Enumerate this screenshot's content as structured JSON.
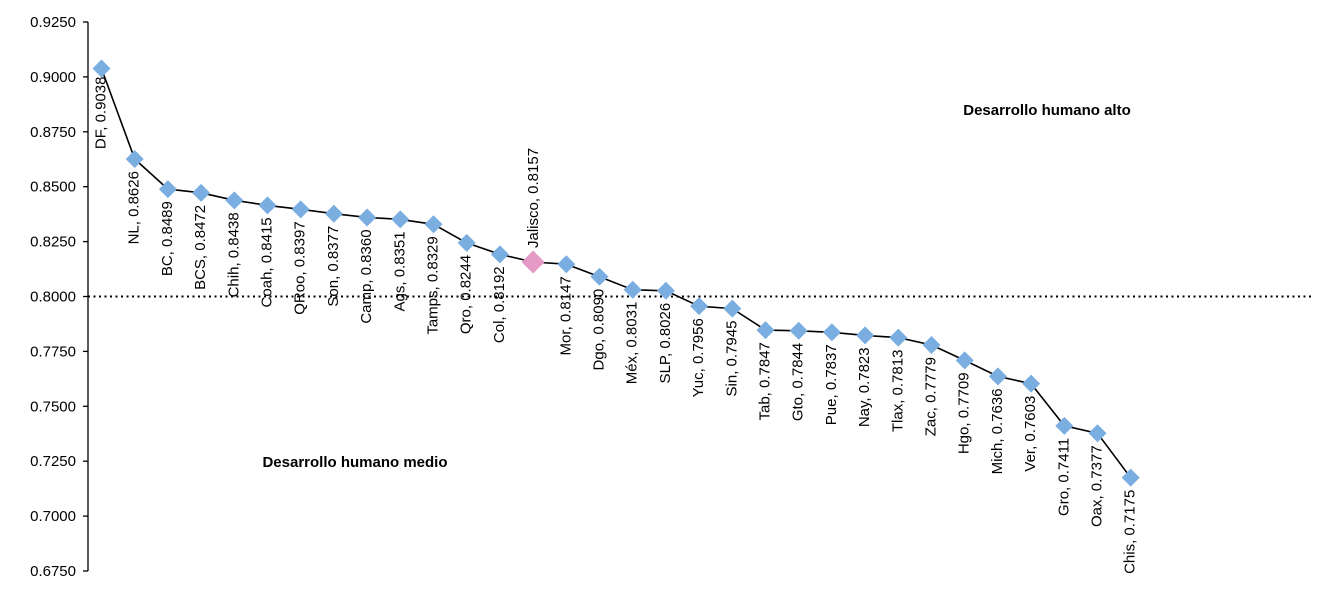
{
  "chart_data": {
    "type": "line",
    "title": "",
    "xlabel": "",
    "ylabel": "",
    "ylim": [
      0.675,
      0.925
    ],
    "y_ticks": [
      "0.9250",
      "0.9000",
      "0.8750",
      "0.8500",
      "0.8250",
      "0.8000",
      "0.7750",
      "0.7500",
      "0.7250",
      "0.7000",
      "0.6750"
    ],
    "grid": false,
    "reference_line": {
      "value": 0.8,
      "style": "dotted"
    },
    "annotations": {
      "high": "Desarrollo humano alto",
      "medium": "Desarrollo humano medio"
    },
    "colors": {
      "line": "#000000",
      "marker": "#7AADE0",
      "highlight": "#E59AC6"
    },
    "highlight": "Jalisco",
    "categories": [
      "DF",
      "NL",
      "BC",
      "BCS",
      "Chih",
      "Coah",
      "QRoo",
      "Son",
      "Camp",
      "Ags",
      "Tamps",
      "Qro",
      "Col",
      "Jalisco",
      "Mor",
      "Dgo",
      "Méx",
      "SLP",
      "Yuc",
      "Sin",
      "Tab",
      "Gto",
      "Pue",
      "Nay",
      "Tlax",
      "Zac",
      "Hgo",
      "Mich",
      "Ver",
      "Gro",
      "Oax",
      "Chis"
    ],
    "values": [
      0.9038,
      0.8626,
      0.8489,
      0.8472,
      0.8438,
      0.8415,
      0.8397,
      0.8377,
      0.836,
      0.8351,
      0.8329,
      0.8244,
      0.8192,
      0.8157,
      0.8147,
      0.809,
      0.8031,
      0.8026,
      0.7956,
      0.7945,
      0.7847,
      0.7844,
      0.7837,
      0.7823,
      0.7813,
      0.7779,
      0.7709,
      0.7636,
      0.7603,
      0.7411,
      0.7377,
      0.7175
    ],
    "labels": [
      "DF, 0.9038",
      "NL, 0.8626",
      "BC, 0.8489",
      "BCS, 0.8472",
      "Chih, 0.8438",
      "Coah, 0.8415",
      "QRoo, 0.8397",
      "Son, 0.8377",
      "Camp, 0.8360",
      "Ags, 0.8351",
      "Tamps, 0.8329",
      "Qro, 0.8244",
      "Col, 0.8192",
      "Jalisco, 0.8157",
      "Mor, 0.8147",
      "Dgo, 0.8090",
      "Méx, 0.8031",
      "SLP, 0.8026",
      "Yuc, 0.7956",
      "Sin, 0.7945",
      "Tab, 0.7847",
      "Gto, 0.7844",
      "Pue, 0.7837",
      "Nay, 0.7823",
      "Tlax, 0.7813",
      "Zac, 0.7779",
      "Hgo, 0.7709",
      "Mich, 0.7636",
      "Ver, 0.7603",
      "Gro, 0.7411",
      "Oax, 0.7377",
      "Chis, 0.7175"
    ]
  }
}
